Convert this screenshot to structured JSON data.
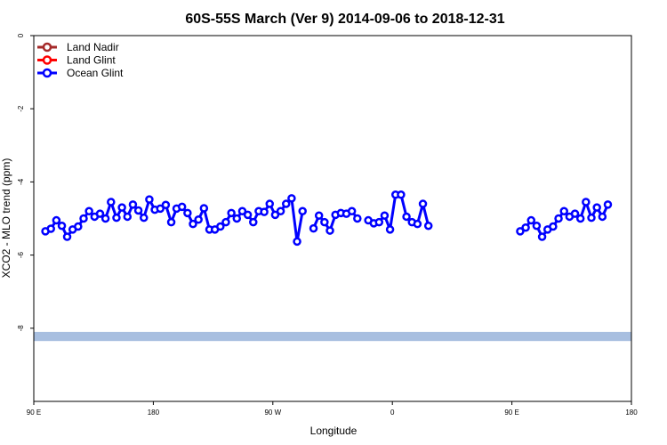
{
  "chart_data": {
    "type": "line",
    "title": "60S-55S March (Ver 9)   2014-09-06 to 2018-12-31",
    "xlabel": "Longitude",
    "ylabel": "XCO2 - MLO trend (ppm)",
    "xlim": [
      90,
      450
    ],
    "ylim": [
      -10,
      0
    ],
    "x_ticks": [
      {
        "value": 90,
        "label": "90 E"
      },
      {
        "value": 162,
        "label": "180"
      },
      {
        "value": 234,
        "label": "90 W"
      },
      {
        "value": 306,
        "label": "0"
      },
      {
        "value": 378,
        "label": "90 E"
      },
      {
        "value": 450,
        "label": "180"
      }
    ],
    "y_ticks": [
      {
        "value": 0,
        "label": "0"
      },
      {
        "value": -2,
        "label": "-2"
      },
      {
        "value": -4,
        "label": "-4"
      },
      {
        "value": -6,
        "label": "-6"
      },
      {
        "value": -8,
        "label": "-8"
      }
    ],
    "legend": {
      "placement": "top-left",
      "entries": [
        {
          "label": "Land Nadir",
          "color": "#a52a2a"
        },
        {
          "label": "Land Glint",
          "color": "#ff0000"
        },
        {
          "label": "Ocean Glint",
          "color": "#0000ff"
        }
      ]
    },
    "band": {
      "y_from": -8.35,
      "y_to": -8.1,
      "color": "#a8bfe0"
    },
    "series": [
      {
        "name": "Ocean Glint",
        "color": "#0000ff",
        "segments": [
          [
            [
              97.0,
              -5.35
            ],
            [
              100.3,
              -5.28
            ],
            [
              103.6,
              -5.05
            ],
            [
              106.9,
              -5.2
            ],
            [
              110.1,
              -5.5
            ],
            [
              113.4,
              -5.3
            ],
            [
              116.7,
              -5.22
            ],
            [
              120.0,
              -5.0
            ],
            [
              123.3,
              -4.8
            ],
            [
              126.6,
              -4.95
            ],
            [
              129.9,
              -4.87
            ],
            [
              133.2,
              -5.0
            ],
            [
              136.5,
              -4.55
            ],
            [
              139.8,
              -4.98
            ],
            [
              143.1,
              -4.7
            ],
            [
              146.4,
              -4.95
            ],
            [
              149.7,
              -4.62
            ],
            [
              153.0,
              -4.78
            ],
            [
              156.3,
              -4.98
            ],
            [
              159.6,
              -4.48
            ],
            [
              162.9,
              -4.76
            ],
            [
              166.2,
              -4.73
            ],
            [
              169.5,
              -4.63
            ],
            [
              172.8,
              -5.1
            ],
            [
              176.0,
              -4.73
            ],
            [
              179.3,
              -4.68
            ],
            [
              182.6,
              -4.85
            ],
            [
              185.9,
              -5.15
            ],
            [
              189.2,
              -5.03
            ],
            [
              192.5,
              -4.72
            ],
            [
              195.8,
              -5.3
            ],
            [
              199.1,
              -5.3
            ],
            [
              202.4,
              -5.22
            ],
            [
              205.7,
              -5.1
            ],
            [
              209.0,
              -4.85
            ],
            [
              212.3,
              -5.0
            ],
            [
              215.6,
              -4.8
            ],
            [
              218.9,
              -4.9
            ],
            [
              222.2,
              -5.1
            ],
            [
              225.5,
              -4.8
            ],
            [
              228.8,
              -4.82
            ],
            [
              232.1,
              -4.6
            ],
            [
              235.4,
              -4.9
            ],
            [
              238.7,
              -4.8
            ],
            [
              242.0,
              -4.6
            ],
            [
              245.3,
              -4.45
            ],
            [
              248.6,
              -5.63
            ],
            [
              251.9,
              -4.8
            ]
          ],
          [
            [
              258.5,
              -5.27
            ],
            [
              261.8,
              -4.92
            ],
            [
              265.1,
              -5.1
            ],
            [
              268.4,
              -5.33
            ],
            [
              271.7,
              -4.9
            ],
            [
              275.0,
              -4.85
            ],
            [
              278.3,
              -4.87
            ],
            [
              281.6,
              -4.8
            ],
            [
              284.9,
              -5.0
            ]
          ],
          [
            [
              291.5,
              -5.05
            ],
            [
              294.8,
              -5.13
            ],
            [
              298.0,
              -5.1
            ],
            [
              301.3,
              -4.92
            ],
            [
              304.6,
              -5.3
            ],
            [
              307.9,
              -4.35
            ],
            [
              311.2,
              -4.35
            ],
            [
              314.5,
              -4.95
            ],
            [
              317.8,
              -5.1
            ],
            [
              321.1,
              -5.15
            ],
            [
              324.4,
              -4.6
            ],
            [
              327.7,
              -5.2
            ]
          ],
          [
            [
              383.0,
              -5.35
            ],
            [
              386.3,
              -5.25
            ],
            [
              389.6,
              -5.05
            ],
            [
              392.9,
              -5.2
            ],
            [
              396.2,
              -5.5
            ],
            [
              399.5,
              -5.3
            ],
            [
              402.8,
              -5.22
            ],
            [
              406.1,
              -5.0
            ],
            [
              409.4,
              -4.8
            ],
            [
              412.7,
              -4.95
            ],
            [
              416.0,
              -4.87
            ],
            [
              419.3,
              -5.0
            ],
            [
              422.6,
              -4.55
            ],
            [
              425.9,
              -4.98
            ],
            [
              429.2,
              -4.7
            ],
            [
              432.5,
              -4.95
            ],
            [
              435.8,
              -4.62
            ]
          ]
        ]
      }
    ]
  }
}
